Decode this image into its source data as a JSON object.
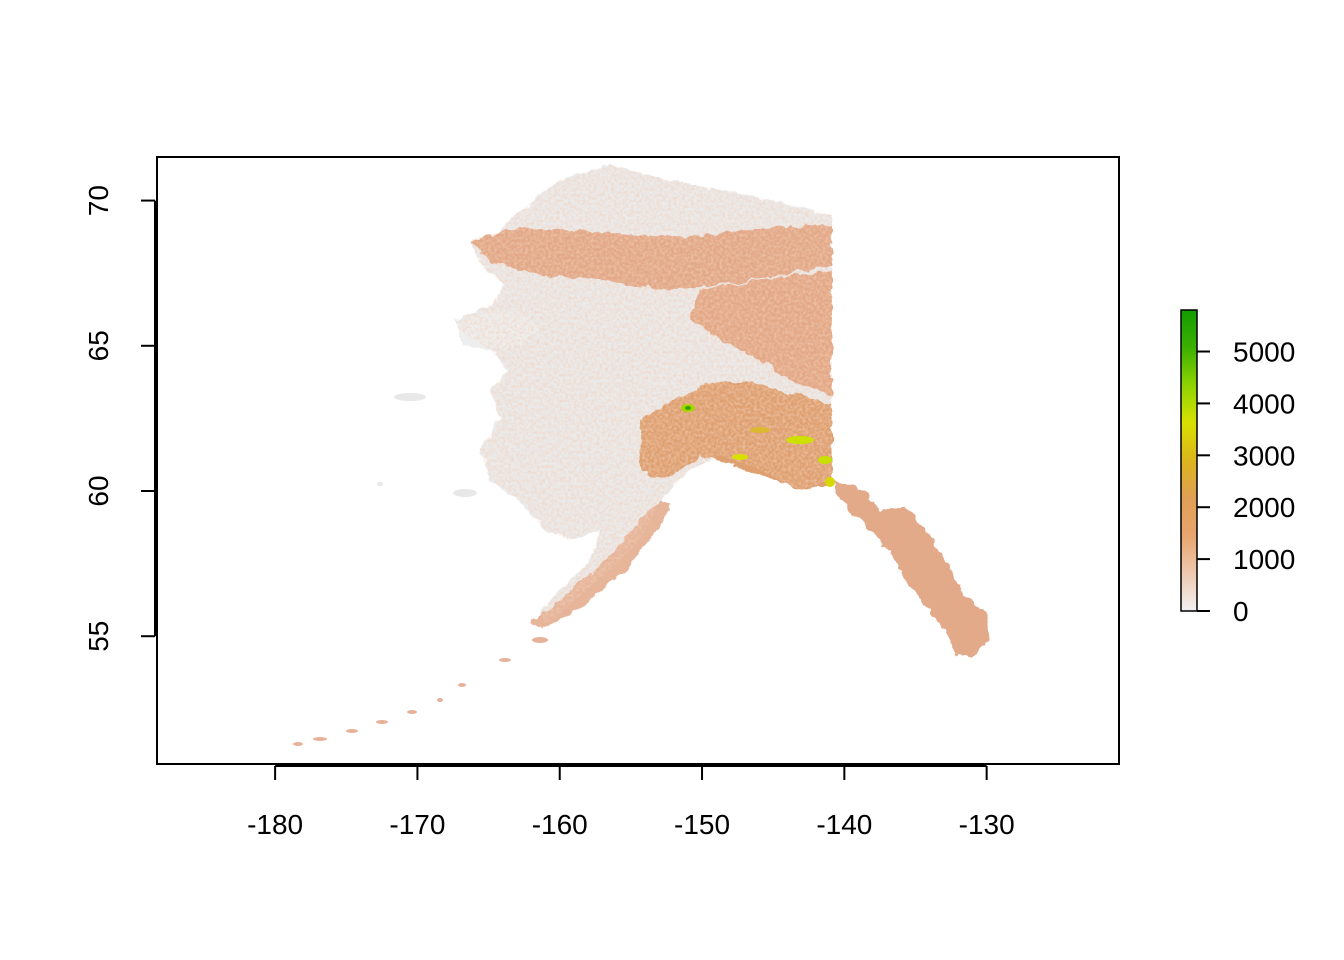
{
  "map": {
    "x_ticks": [
      "-180",
      "-170",
      "-160",
      "-150",
      "-140",
      "-130"
    ],
    "y_ticks": [
      "55",
      "60",
      "65",
      "70"
    ],
    "x_tick_values": [
      -180,
      -170,
      -160,
      -150,
      -140,
      -130
    ],
    "y_tick_values": [
      55,
      60,
      65,
      70
    ],
    "xlim": [
      -188.3,
      -120.7
    ],
    "ylim": [
      50.6,
      71.5
    ],
    "grid": false
  },
  "legend": {
    "type": "continuous-colorbar",
    "ticks": [
      "0",
      "1000",
      "2000",
      "3000",
      "4000",
      "5000"
    ],
    "tick_values": [
      0,
      1000,
      2000,
      3000,
      4000,
      5000
    ],
    "range": [
      0,
      5800
    ],
    "colors": [
      "#f2f2f2",
      "#eec9b0",
      "#e8a56e",
      "#e09f55",
      "#dcb51c",
      "#d8e000",
      "#8ed400",
      "#3cb000",
      "#149c00"
    ]
  },
  "raster": {
    "description_colors": {
      "low": "#ececec",
      "mid": "#e4a07e",
      "high": "#dca04e",
      "peak": "#b8d800"
    }
  }
}
